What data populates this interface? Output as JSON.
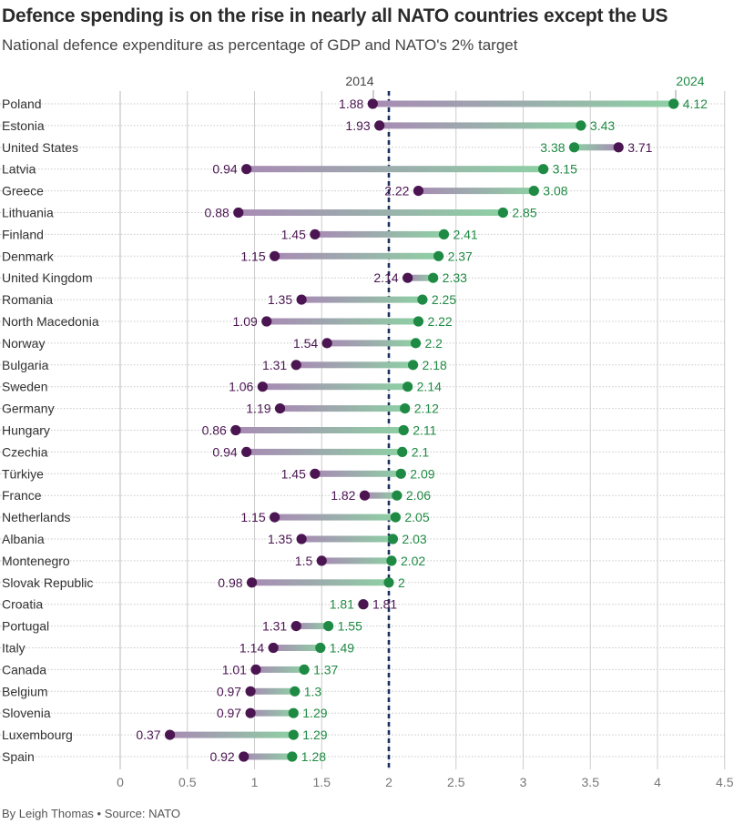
{
  "title": "Defence spending is on the rise in nearly all NATO countries except the US",
  "subtitle": "National defence expenditure as percentage of GDP and NATO's 2% target",
  "footer": "By Leigh Thomas • Source: NATO",
  "colors": {
    "y2014": "#4b1552",
    "y2024": "#1f8a43",
    "line2014": "#a88bb4",
    "line2024": "#8ed0a4",
    "target": "#1b2f5e",
    "grid": "#cccccc",
    "label": "#444444"
  },
  "chart_data": {
    "type": "dumbbell",
    "series": [
      {
        "name": "2014"
      },
      {
        "name": "2024"
      }
    ],
    "reference_line": {
      "value": 2
    },
    "xlim": [
      0,
      4.5
    ],
    "x_ticks": [
      "0",
      "0.5",
      "1",
      "1.5",
      "2",
      "2.5",
      "3",
      "3.5",
      "4",
      "4.5"
    ],
    "grid": true,
    "rows": [
      {
        "country": "Poland",
        "v2014": 1.88,
        "v2024": 4.12,
        "l2014": "1.88",
        "l2024": "4.12"
      },
      {
        "country": "Estonia",
        "v2014": 1.93,
        "v2024": 3.43,
        "l2014": "1.93",
        "l2024": "3.43"
      },
      {
        "country": "United States",
        "v2014": 3.71,
        "v2024": 3.38,
        "l2014": "3.71",
        "l2024": "3.38"
      },
      {
        "country": "Latvia",
        "v2014": 0.94,
        "v2024": 3.15,
        "l2014": "0.94",
        "l2024": "3.15"
      },
      {
        "country": "Greece",
        "v2014": 2.22,
        "v2024": 3.08,
        "l2014": "2.22",
        "l2024": "3.08"
      },
      {
        "country": "Lithuania",
        "v2014": 0.88,
        "v2024": 2.85,
        "l2014": "0.88",
        "l2024": "2.85"
      },
      {
        "country": "Finland",
        "v2014": 1.45,
        "v2024": 2.41,
        "l2014": "1.45",
        "l2024": "2.41"
      },
      {
        "country": "Denmark",
        "v2014": 1.15,
        "v2024": 2.37,
        "l2014": "1.15",
        "l2024": "2.37"
      },
      {
        "country": "United Kingdom",
        "v2014": 2.14,
        "v2024": 2.33,
        "l2014": "2.14",
        "l2024": "2.33"
      },
      {
        "country": "Romania",
        "v2014": 1.35,
        "v2024": 2.25,
        "l2014": "1.35",
        "l2024": "2.25"
      },
      {
        "country": "North Macedonia",
        "v2014": 1.09,
        "v2024": 2.22,
        "l2014": "1.09",
        "l2024": "2.22"
      },
      {
        "country": "Norway",
        "v2014": 1.54,
        "v2024": 2.2,
        "l2014": "1.54",
        "l2024": "2.2"
      },
      {
        "country": "Bulgaria",
        "v2014": 1.31,
        "v2024": 2.18,
        "l2014": "1.31",
        "l2024": "2.18"
      },
      {
        "country": "Sweden",
        "v2014": 1.06,
        "v2024": 2.14,
        "l2014": "1.06",
        "l2024": "2.14"
      },
      {
        "country": "Germany",
        "v2014": 1.19,
        "v2024": 2.12,
        "l2014": "1.19",
        "l2024": "2.12"
      },
      {
        "country": "Hungary",
        "v2014": 0.86,
        "v2024": 2.11,
        "l2014": "0.86",
        "l2024": "2.11"
      },
      {
        "country": "Czechia",
        "v2014": 0.94,
        "v2024": 2.1,
        "l2014": "0.94",
        "l2024": "2.1"
      },
      {
        "country": "Türkiye",
        "v2014": 1.45,
        "v2024": 2.09,
        "l2014": "1.45",
        "l2024": "2.09"
      },
      {
        "country": "France",
        "v2014": 1.82,
        "v2024": 2.06,
        "l2014": "1.82",
        "l2024": "2.06"
      },
      {
        "country": "Netherlands",
        "v2014": 1.15,
        "v2024": 2.05,
        "l2014": "1.15",
        "l2024": "2.05"
      },
      {
        "country": "Albania",
        "v2014": 1.35,
        "v2024": 2.03,
        "l2014": "1.35",
        "l2024": "2.03"
      },
      {
        "country": "Montenegro",
        "v2014": 1.5,
        "v2024": 2.02,
        "l2014": "1.5",
        "l2024": "2.02"
      },
      {
        "country": "Slovak Republic",
        "v2014": 0.98,
        "v2024": 2.0,
        "l2014": "0.98",
        "l2024": "2"
      },
      {
        "country": "Croatia",
        "v2014": 1.81,
        "v2024": 1.81,
        "l2014": "1.81",
        "l2024": "1.81"
      },
      {
        "country": "Portugal",
        "v2014": 1.31,
        "v2024": 1.55,
        "l2014": "1.31",
        "l2024": "1.55"
      },
      {
        "country": "Italy",
        "v2014": 1.14,
        "v2024": 1.49,
        "l2014": "1.14",
        "l2024": "1.49"
      },
      {
        "country": "Canada",
        "v2014": 1.01,
        "v2024": 1.37,
        "l2014": "1.01",
        "l2024": "1.37"
      },
      {
        "country": "Belgium",
        "v2014": 0.97,
        "v2024": 1.3,
        "l2014": "0.97",
        "l2024": "1.3"
      },
      {
        "country": "Slovenia",
        "v2014": 0.97,
        "v2024": 1.29,
        "l2014": "0.97",
        "l2024": "1.29"
      },
      {
        "country": "Luxembourg",
        "v2014": 0.37,
        "v2024": 1.29,
        "l2014": "0.37",
        "l2024": "1.29"
      },
      {
        "country": "Spain",
        "v2014": 0.92,
        "v2024": 1.28,
        "l2014": "0.92",
        "l2024": "1.28"
      }
    ]
  }
}
